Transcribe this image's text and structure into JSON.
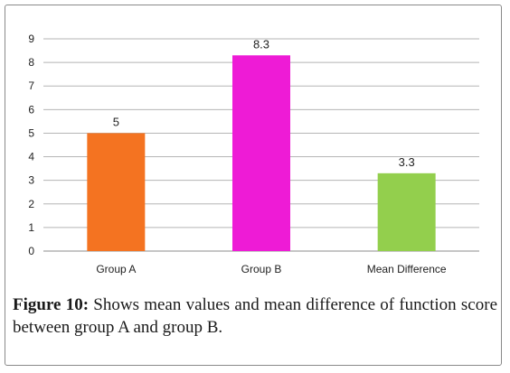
{
  "figure": {
    "label": "Figure 10:",
    "text": " Shows mean values and mean difference of function score between group A and group B."
  },
  "chart_data": {
    "type": "bar",
    "categories": [
      "Group A",
      "Group B",
      "Mean Difference"
    ],
    "values": [
      5,
      8.3,
      3.3
    ],
    "data_labels": [
      "5",
      "8.3",
      "3.3"
    ],
    "colors": [
      "#f47321",
      "#ee1bd6",
      "#93cf4d"
    ],
    "ylim": [
      0,
      9
    ],
    "yticks": [
      0,
      1,
      2,
      3,
      4,
      5,
      6,
      7,
      8,
      9
    ],
    "grid": true,
    "legend": "none"
  }
}
